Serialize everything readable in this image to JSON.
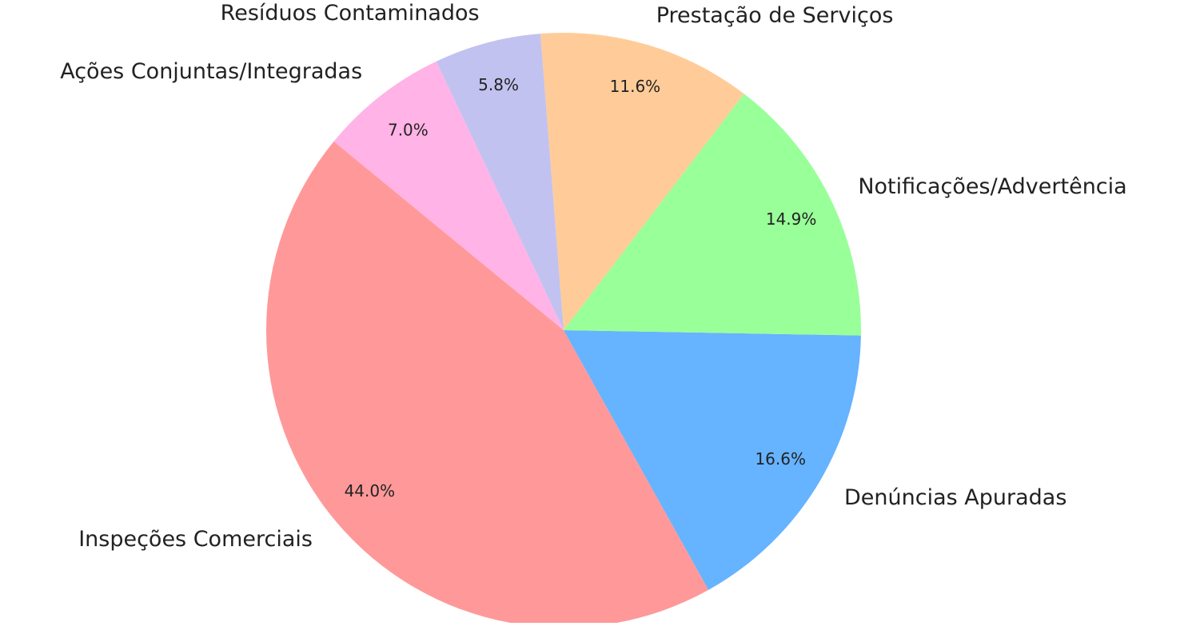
{
  "chart_data": {
    "type": "pie",
    "categories": [
      "Inspeções Comerciais",
      "Denúncias Apuradas",
      "Notificações/Advertência",
      "Prestação de Serviços",
      "Resíduos Contaminados",
      "Ações Conjuntas/Integradas"
    ],
    "values": [
      44.0,
      16.6,
      14.9,
      11.6,
      5.8,
      7.0
    ],
    "value_labels": [
      "44.0%",
      "16.6%",
      "14.9%",
      "11.6%",
      "5.8%",
      "7.0%"
    ],
    "colors": [
      "#ff9999",
      "#66b3ff",
      "#99ff99",
      "#ffcc99",
      "#c2c2f0",
      "#ffb3e6"
    ]
  }
}
